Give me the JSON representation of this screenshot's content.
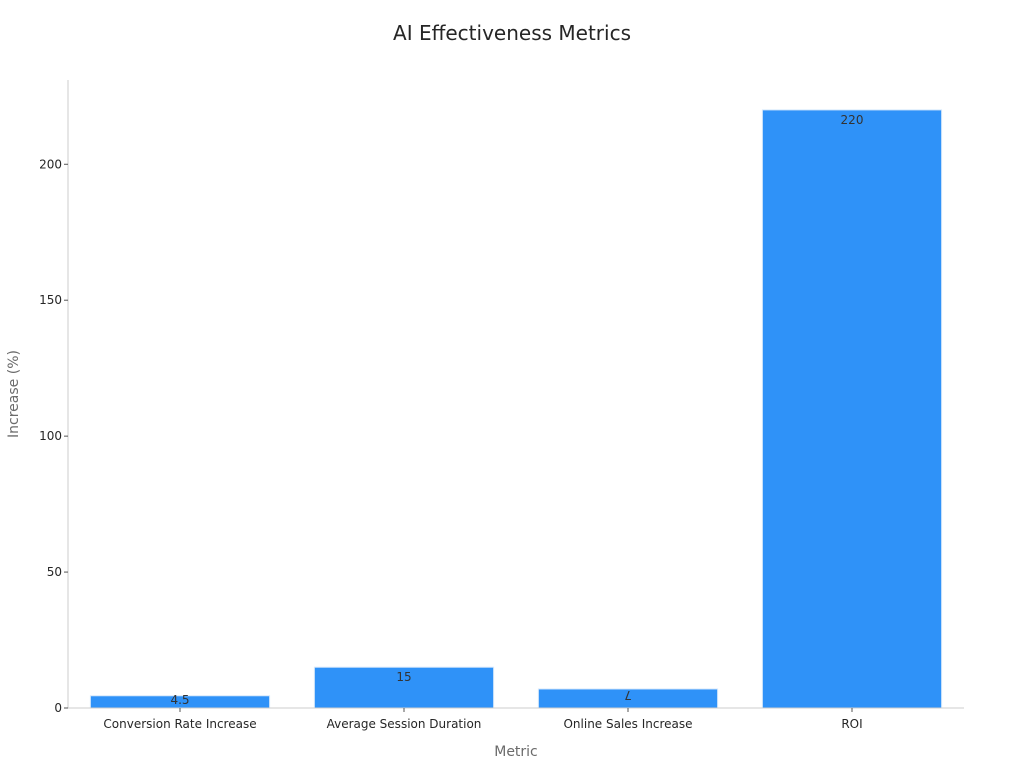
{
  "chart_data": {
    "type": "bar",
    "title": "AI Effectiveness Metrics",
    "xlabel": "Metric",
    "ylabel": "Increase (%)",
    "categories": [
      "Conversion Rate Increase",
      "Average Session Duration",
      "Online Sales Increase",
      "ROI"
    ],
    "values": [
      4.5,
      15,
      7,
      220
    ],
    "data_labels": [
      "4.5",
      "15",
      "7",
      "220"
    ],
    "ylim": [
      0,
      231
    ],
    "yticks": [
      0,
      50,
      100,
      150,
      200
    ],
    "grid": false,
    "legend": "none",
    "bar_color": "#2f92f8",
    "bar_edge_color": "#d6e8fb",
    "axis_color": "#cccccc"
  }
}
